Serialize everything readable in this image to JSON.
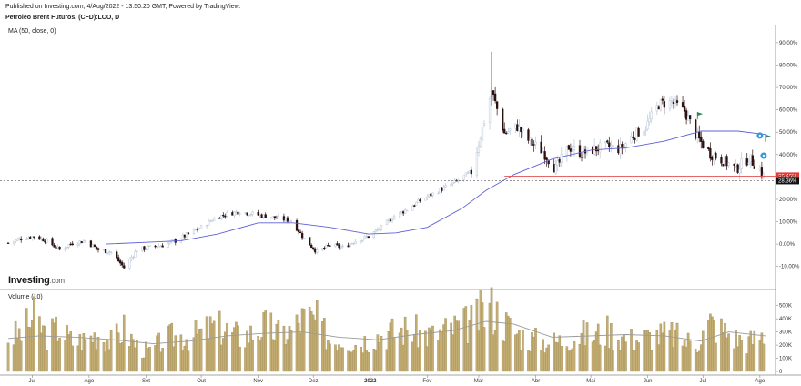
{
  "header": {
    "published": "Published on Investing.com, 4/Aug/2022 - 13:50:20 GMT, Powered by TradingView.",
    "symbol": "Petroleo Brent Futuros, (CFD):LCO, D"
  },
  "indicator_label": "MA (50, close, 0)",
  "volume_label": "Volume (10)",
  "logo": {
    "main": "Investing",
    "suffix": ".com"
  },
  "colors": {
    "up_candle": "#b9c6d8",
    "down_candle": "#2a1010",
    "ma_line": "#6060d8",
    "volume_bar": "#c3ad72",
    "volume_ma": "#9a9a9a",
    "red_line": "#e05050",
    "red_tag": "#e53935",
    "black_tag": "#111111",
    "flag": "#2e8b57",
    "event_marker": "#3399dd"
  },
  "chart_data": [
    {
      "type": "candlestick",
      "title": "Petroleo Brent Futuros, (CFD):LCO, D",
      "y_unit": "%",
      "ylim": [
        -15,
        92
      ],
      "y_ticks": [
        "90.00%",
        "80.00%",
        "70.00%",
        "60.00%",
        "50.00%",
        "40.00%",
        "30.00%",
        "20.00%",
        "10.00%",
        "0.00%",
        "-10.00%"
      ],
      "x_ticks": [
        "Jul",
        "Ago",
        "Set",
        "Out",
        "Nov",
        "Dez",
        "2022",
        "Fev",
        "Mar",
        "Abr",
        "Mai",
        "Jun",
        "Jul",
        "Ago"
      ],
      "x_range": [
        "2021-06-15",
        "2022-08-08"
      ],
      "series": [
        {
          "name": "",
          "points": [
            [
              "2021-06-18",
              0.5
            ],
            [
              "2021-06-25",
              2.5
            ],
            [
              "2021-07-02",
              3.5
            ],
            [
              "2021-07-09",
              1.5
            ],
            [
              "2021-07-16",
              -2.5
            ],
            [
              "2021-07-23",
              0.5
            ],
            [
              "2021-07-30",
              1.5
            ],
            [
              "2021-08-06",
              -2.5
            ],
            [
              "2021-08-13",
              -3.5
            ],
            [
              "2021-08-20",
              -10.5
            ],
            [
              "2021-08-27",
              -2.5
            ],
            [
              "2021-09-03",
              -1.5
            ],
            [
              "2021-09-10",
              -0.5
            ],
            [
              "2021-09-17",
              1.5
            ],
            [
              "2021-09-24",
              4.5
            ],
            [
              "2021-10-01",
              7.5
            ],
            [
              "2021-10-08",
              11.5
            ],
            [
              "2021-10-15",
              13.5
            ],
            [
              "2021-10-22",
              14.5
            ],
            [
              "2021-10-29",
              13.5
            ],
            [
              "2021-11-05",
              12.5
            ],
            [
              "2021-11-12",
              11.5
            ],
            [
              "2021-11-19",
              10.5
            ],
            [
              "2021-11-26",
              2.5
            ],
            [
              "2021-12-03",
              -3.5
            ],
            [
              "2021-12-10",
              -0.5
            ],
            [
              "2021-12-17",
              -1.5
            ],
            [
              "2021-12-24",
              1.5
            ],
            [
              "2021-12-31",
              3.5
            ],
            [
              "2022-01-07",
              7.5
            ],
            [
              "2022-01-14",
              12.5
            ],
            [
              "2022-01-21",
              15.5
            ],
            [
              "2022-01-28",
              19.5
            ],
            [
              "2022-02-04",
              22.5
            ],
            [
              "2022-02-11",
              25.5
            ],
            [
              "2022-02-18",
              28.5
            ],
            [
              "2022-02-25",
              32.5
            ],
            [
              "2022-03-02",
              48.5
            ],
            [
              "2022-03-08",
              68.5
            ],
            [
              "2022-03-15",
              49.5
            ],
            [
              "2022-03-22",
              52.5
            ],
            [
              "2022-03-29",
              45.5
            ],
            [
              "2022-04-05",
              41.5
            ],
            [
              "2022-04-12",
              33.5
            ],
            [
              "2022-04-19",
              43.5
            ],
            [
              "2022-04-26",
              40.5
            ],
            [
              "2022-05-03",
              42.5
            ],
            [
              "2022-05-10",
              43.5
            ],
            [
              "2022-05-17",
              42.5
            ],
            [
              "2022-05-24",
              48.5
            ],
            [
              "2022-05-31",
              52.5
            ],
            [
              "2022-06-07",
              62.5
            ],
            [
              "2022-06-14",
              63.5
            ],
            [
              "2022-06-21",
              59.5
            ],
            [
              "2022-06-28",
              47.5
            ],
            [
              "2022-07-05",
              40.5
            ],
            [
              "2022-07-12",
              37.5
            ],
            [
              "2022-07-19",
              33.5
            ],
            [
              "2022-07-26",
              38.5
            ],
            [
              "2022-08-01",
              33.5
            ],
            [
              "2022-08-04",
              28.4
            ]
          ]
        }
      ],
      "moving_average": {
        "name": "MA (50, close, 0)",
        "points": [
          [
            "2021-08-10",
            0.0
          ],
          [
            "2021-09-01",
            0.8
          ],
          [
            "2021-09-20",
            1.5
          ],
          [
            "2021-10-10",
            4.5
          ],
          [
            "2021-11-01",
            9.5
          ],
          [
            "2021-11-20",
            9.5
          ],
          [
            "2021-12-10",
            7.5
          ],
          [
            "2021-12-31",
            4.5
          ],
          [
            "2022-01-15",
            5.0
          ],
          [
            "2022-02-01",
            7.5
          ],
          [
            "2022-02-20",
            16.0
          ],
          [
            "2022-03-05",
            24.0
          ],
          [
            "2022-03-20",
            31.0
          ],
          [
            "2022-04-10",
            38.0
          ],
          [
            "2022-05-01",
            42.0
          ],
          [
            "2022-05-20",
            43.0
          ],
          [
            "2022-06-10",
            46.0
          ],
          [
            "2022-06-30",
            50.5
          ],
          [
            "2022-07-20",
            50.5
          ],
          [
            "2022-08-04",
            49.0
          ]
        ]
      },
      "horizontal_lines": [
        {
          "value": 30.4,
          "label": "30.40%",
          "style": "red"
        },
        {
          "value": 28.36,
          "label": "28.36%",
          "style": "dashed"
        }
      ],
      "events": [
        {
          "type": "flag",
          "date": "2022-06-28",
          "value": 59
        },
        {
          "type": "flag",
          "date": "2022-08-04",
          "value": 49
        },
        {
          "type": "marker",
          "date": "2022-08-01",
          "value": 48.5
        },
        {
          "type": "marker",
          "date": "2022-08-03",
          "value": 39.5
        }
      ]
    },
    {
      "type": "bar",
      "title": "Volume (10)",
      "ylim": [
        0,
        560000
      ],
      "y_ticks": [
        "500K",
        "400K",
        "300K",
        "200K",
        "100K",
        "0"
      ],
      "x_ticks": [
        "Jul",
        "Ago",
        "Set",
        "Out",
        "Nov",
        "Dez",
        "2022",
        "Fev",
        "Mar",
        "Abr",
        "Mai",
        "Jun",
        "Jul",
        "Ago"
      ],
      "x_range": [
        "2021-06-15",
        "2022-08-08"
      ],
      "series": [
        {
          "name": "Volume",
          "points": [
            [
              "2021-06-18",
              260000
            ],
            [
              "2021-06-25",
              300000
            ],
            [
              "2021-07-02",
              420000
            ],
            [
              "2021-07-09",
              280000
            ],
            [
              "2021-07-16",
              340000
            ],
            [
              "2021-07-23",
              230000
            ],
            [
              "2021-07-30",
              250000
            ],
            [
              "2021-08-06",
              300000
            ],
            [
              "2021-08-13",
              230000
            ],
            [
              "2021-08-20",
              330000
            ],
            [
              "2021-08-27",
              200000
            ],
            [
              "2021-09-03",
              150000
            ],
            [
              "2021-09-10",
              240000
            ],
            [
              "2021-09-17",
              280000
            ],
            [
              "2021-09-24",
              270000
            ],
            [
              "2021-10-01",
              300000
            ],
            [
              "2021-10-08",
              350000
            ],
            [
              "2021-10-15",
              320000
            ],
            [
              "2021-10-22",
              270000
            ],
            [
              "2021-10-29",
              300000
            ],
            [
              "2021-11-05",
              360000
            ],
            [
              "2021-11-12",
              290000
            ],
            [
              "2021-11-19",
              320000
            ],
            [
              "2021-11-26",
              420000
            ],
            [
              "2021-12-03",
              390000
            ],
            [
              "2021-12-10",
              240000
            ],
            [
              "2021-12-17",
              260000
            ],
            [
              "2021-12-24",
              220000
            ],
            [
              "2021-12-31",
              260000
            ],
            [
              "2022-01-07",
              290000
            ],
            [
              "2022-01-14",
              310000
            ],
            [
              "2022-01-21",
              330000
            ],
            [
              "2022-01-28",
              300000
            ],
            [
              "2022-02-04",
              280000
            ],
            [
              "2022-02-11",
              320000
            ],
            [
              "2022-02-18",
              350000
            ],
            [
              "2022-02-25",
              380000
            ],
            [
              "2022-03-02",
              440000
            ],
            [
              "2022-03-08",
              500000
            ],
            [
              "2022-03-15",
              380000
            ],
            [
              "2022-03-22",
              300000
            ],
            [
              "2022-03-29",
              250000
            ],
            [
              "2022-04-05",
              240000
            ],
            [
              "2022-04-12",
              230000
            ],
            [
              "2022-04-19",
              260000
            ],
            [
              "2022-04-26",
              290000
            ],
            [
              "2022-05-03",
              280000
            ],
            [
              "2022-05-10",
              320000
            ],
            [
              "2022-05-17",
              270000
            ],
            [
              "2022-05-24",
              250000
            ],
            [
              "2022-05-31",
              270000
            ],
            [
              "2022-06-07",
              280000
            ],
            [
              "2022-06-14",
              290000
            ],
            [
              "2022-06-21",
              240000
            ],
            [
              "2022-06-28",
              230000
            ],
            [
              "2022-07-05",
              380000
            ],
            [
              "2022-07-12",
              320000
            ],
            [
              "2022-07-19",
              260000
            ],
            [
              "2022-07-26",
              230000
            ],
            [
              "2022-08-01",
              280000
            ],
            [
              "2022-08-04",
              300000
            ]
          ]
        }
      ],
      "moving_average": {
        "name": "Volume (10)",
        "points": [
          [
            "2021-06-18",
            250000
          ],
          [
            "2021-07-05",
            270000
          ],
          [
            "2021-07-25",
            260000
          ],
          [
            "2021-08-15",
            240000
          ],
          [
            "2021-09-05",
            210000
          ],
          [
            "2021-09-25",
            230000
          ],
          [
            "2021-10-15",
            270000
          ],
          [
            "2021-11-05",
            290000
          ],
          [
            "2021-11-25",
            300000
          ],
          [
            "2021-12-15",
            260000
          ],
          [
            "2022-01-05",
            240000
          ],
          [
            "2022-01-25",
            280000
          ],
          [
            "2022-02-15",
            310000
          ],
          [
            "2022-03-05",
            380000
          ],
          [
            "2022-03-20",
            360000
          ],
          [
            "2022-04-10",
            260000
          ],
          [
            "2022-05-01",
            270000
          ],
          [
            "2022-05-20",
            280000
          ],
          [
            "2022-06-10",
            270000
          ],
          [
            "2022-06-30",
            230000
          ],
          [
            "2022-07-15",
            300000
          ],
          [
            "2022-08-04",
            270000
          ]
        ]
      }
    }
  ]
}
